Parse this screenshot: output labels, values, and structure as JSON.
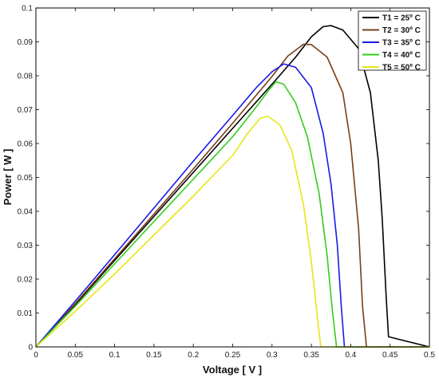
{
  "chart_data": {
    "type": "line",
    "xlabel": "Voltage [ V ]",
    "ylabel": "Power [ W ]",
    "xlim": [
      0,
      0.5
    ],
    "ylim": [
      0,
      0.1
    ],
    "x_ticks": [
      "0",
      "0.05",
      "0.1",
      "0.15",
      "0.2",
      "0.25",
      "0.3",
      "0.35",
      "0.4",
      "0.45",
      "0.5"
    ],
    "y_ticks": [
      "0",
      "0.01",
      "0.02",
      "0.03",
      "0.04",
      "0.05",
      "0.06",
      "0.07",
      "0.08",
      "0.09",
      "0.1"
    ],
    "grid": false,
    "legend_position": "top-right",
    "series": [
      {
        "name": "T1 = 25º C",
        "color": "#000000",
        "x": [
          0,
          0.05,
          0.1,
          0.15,
          0.2,
          0.25,
          0.3,
          0.33,
          0.35,
          0.365,
          0.375,
          0.39,
          0.41,
          0.425,
          0.435,
          0.44,
          0.445,
          0.448,
          0.5
        ],
        "y": [
          0,
          0.0125,
          0.0255,
          0.0385,
          0.0515,
          0.0645,
          0.0775,
          0.0855,
          0.0915,
          0.0945,
          0.0948,
          0.0935,
          0.088,
          0.075,
          0.055,
          0.038,
          0.015,
          0.003,
          0
        ]
      },
      {
        "name": "T2 = 30º C",
        "color": "#7a3e14",
        "x": [
          0,
          0.05,
          0.1,
          0.15,
          0.2,
          0.25,
          0.3,
          0.32,
          0.34,
          0.35,
          0.37,
          0.39,
          0.4,
          0.41,
          0.415,
          0.42,
          0.5
        ],
        "y": [
          0,
          0.0128,
          0.026,
          0.0392,
          0.0525,
          0.066,
          0.0798,
          0.0858,
          0.0893,
          0.0892,
          0.0855,
          0.075,
          0.06,
          0.035,
          0.012,
          0,
          0
        ]
      },
      {
        "name": "T3 = 35º C",
        "color": "#1a1ae6",
        "x": [
          0,
          0.05,
          0.1,
          0.15,
          0.2,
          0.25,
          0.28,
          0.3,
          0.315,
          0.33,
          0.35,
          0.365,
          0.375,
          0.383,
          0.388,
          0.392,
          0.5
        ],
        "y": [
          0,
          0.0135,
          0.0272,
          0.041,
          0.0548,
          0.0683,
          0.0765,
          0.0812,
          0.0835,
          0.0825,
          0.0765,
          0.063,
          0.048,
          0.03,
          0.012,
          0,
          0
        ]
      },
      {
        "name": "T4 = 40º C",
        "color": "#33cc1a",
        "x": [
          0,
          0.05,
          0.1,
          0.15,
          0.2,
          0.25,
          0.28,
          0.295,
          0.305,
          0.315,
          0.33,
          0.345,
          0.36,
          0.37,
          0.377,
          0.382,
          0.5
        ],
        "y": [
          0,
          0.012,
          0.0245,
          0.037,
          0.0495,
          0.062,
          0.0708,
          0.0755,
          0.0782,
          0.0775,
          0.072,
          0.062,
          0.045,
          0.027,
          0.01,
          0,
          0
        ]
      },
      {
        "name": "T5 = 50º C",
        "color": "#e6e61a",
        "x": [
          0,
          0.05,
          0.1,
          0.15,
          0.2,
          0.25,
          0.27,
          0.285,
          0.295,
          0.31,
          0.325,
          0.34,
          0.35,
          0.358,
          0.362,
          0.5
        ],
        "y": [
          0,
          0.0105,
          0.0215,
          0.033,
          0.0445,
          0.0565,
          0.0633,
          0.0675,
          0.068,
          0.0655,
          0.058,
          0.042,
          0.025,
          0.008,
          0,
          0
        ]
      }
    ]
  }
}
